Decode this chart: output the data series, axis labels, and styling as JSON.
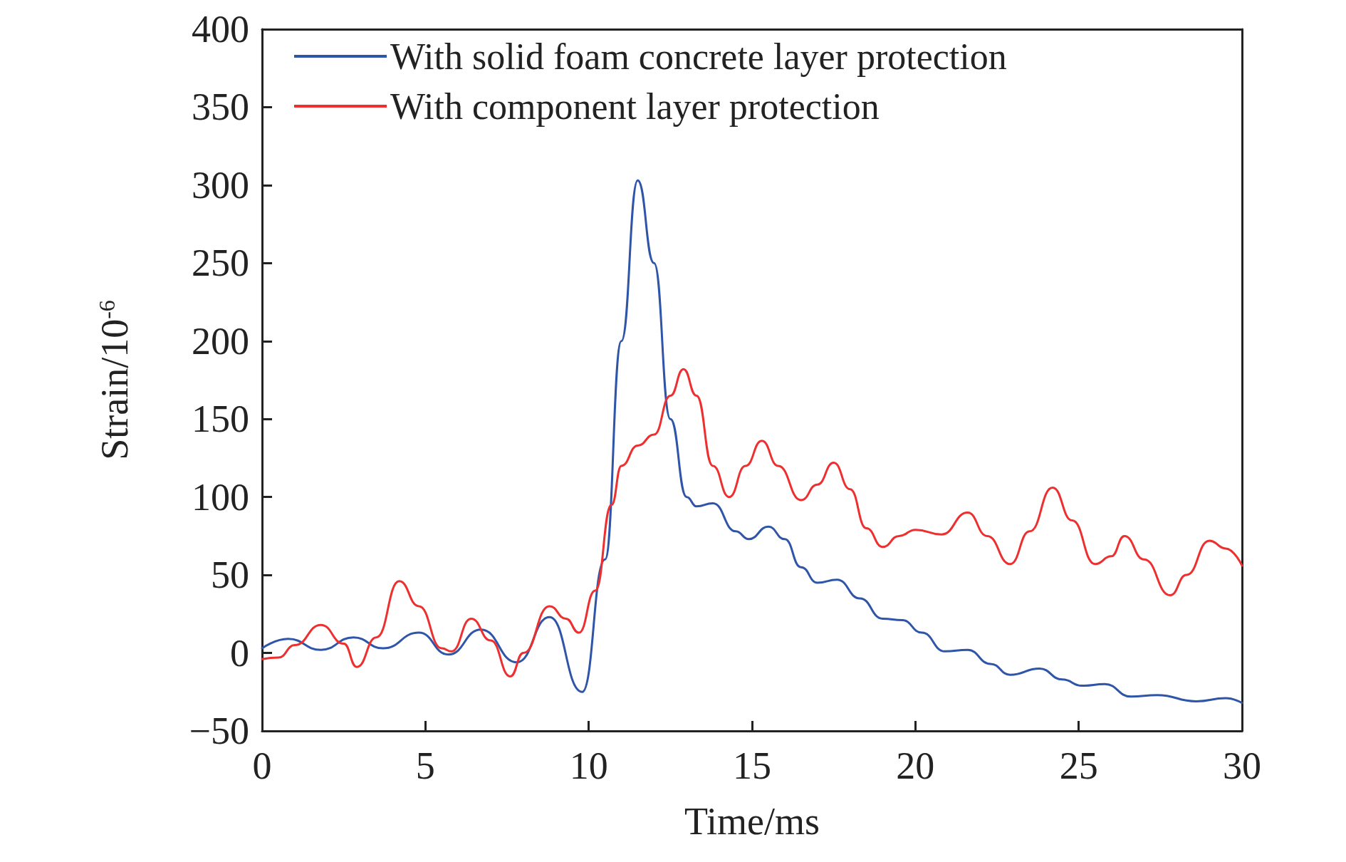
{
  "chart_data": {
    "type": "line",
    "xlabel": "Time/ms",
    "ylabel": "Strain/10$^{-6}$",
    "xlim": [
      0,
      30
    ],
    "xticks": [
      0,
      5,
      10,
      15,
      20,
      25,
      30
    ],
    "ylim": [
      -50,
      400
    ],
    "yticks": [
      -50,
      0,
      50,
      100,
      150,
      200,
      250,
      300,
      350,
      400
    ],
    "grid": false,
    "legend": "top",
    "marker": "none",
    "line_style": "solid",
    "series": [
      {
        "name": "With solid foam concrete layer protection",
        "color": "#2f55a8",
        "x": [
          0,
          0.8,
          1.8,
          2.8,
          3.7,
          4.8,
          5.7,
          6.7,
          7.8,
          8.8,
          9.8,
          10.5,
          11.0,
          11.5,
          12.0,
          12.5,
          13.0,
          13.3,
          13.8,
          14.5,
          14.9,
          15.5,
          16.0,
          16.5,
          17.0,
          17.6,
          18.3,
          19.0,
          19.6,
          20.2,
          20.9,
          21.6,
          22.3,
          22.9,
          23.8,
          24.5,
          25.1,
          25.8,
          26.6,
          27.4,
          28.6,
          29.5,
          30
        ],
        "values": [
          3,
          9,
          2,
          10,
          3,
          13,
          -1,
          15,
          -6,
          23,
          -25,
          60,
          200,
          303,
          250,
          150,
          100,
          94,
          96,
          78,
          73,
          81,
          73,
          55,
          45,
          47,
          35,
          22,
          21,
          13,
          1,
          2,
          -7,
          -14,
          -10,
          -17,
          -21,
          -20,
          -28,
          -27,
          -31,
          -29,
          -32
        ]
      },
      {
        "name": "With component layer protection",
        "color": "#ee2f2f",
        "x": [
          0,
          0.5,
          1.0,
          1.8,
          2.5,
          2.9,
          3.5,
          4.2,
          4.8,
          5.5,
          5.8,
          6.4,
          7.0,
          7.6,
          8.0,
          8.8,
          9.3,
          9.7,
          10.2,
          10.7,
          11.0,
          11.5,
          12.0,
          12.5,
          12.9,
          13.3,
          13.8,
          14.3,
          14.8,
          15.3,
          15.8,
          16.5,
          17.0,
          17.5,
          18.0,
          18.5,
          19.0,
          19.5,
          20.0,
          20.8,
          21.6,
          22.2,
          22.9,
          23.5,
          24.2,
          24.8,
          25.5,
          26.0,
          26.4,
          27.0,
          27.8,
          28.3,
          29.0,
          29.5,
          30
        ],
        "values": [
          -4,
          -3,
          5,
          18,
          6,
          -9,
          10,
          46,
          30,
          3,
          1,
          22,
          8,
          -15,
          0,
          30,
          22,
          13,
          40,
          95,
          120,
          133,
          140,
          165,
          182,
          165,
          120,
          100,
          120,
          136,
          120,
          98,
          108,
          122,
          105,
          80,
          68,
          75,
          79,
          76,
          90,
          75,
          57,
          78,
          106,
          85,
          57,
          62,
          75,
          60,
          37,
          50,
          72,
          67,
          56
        ]
      }
    ]
  }
}
